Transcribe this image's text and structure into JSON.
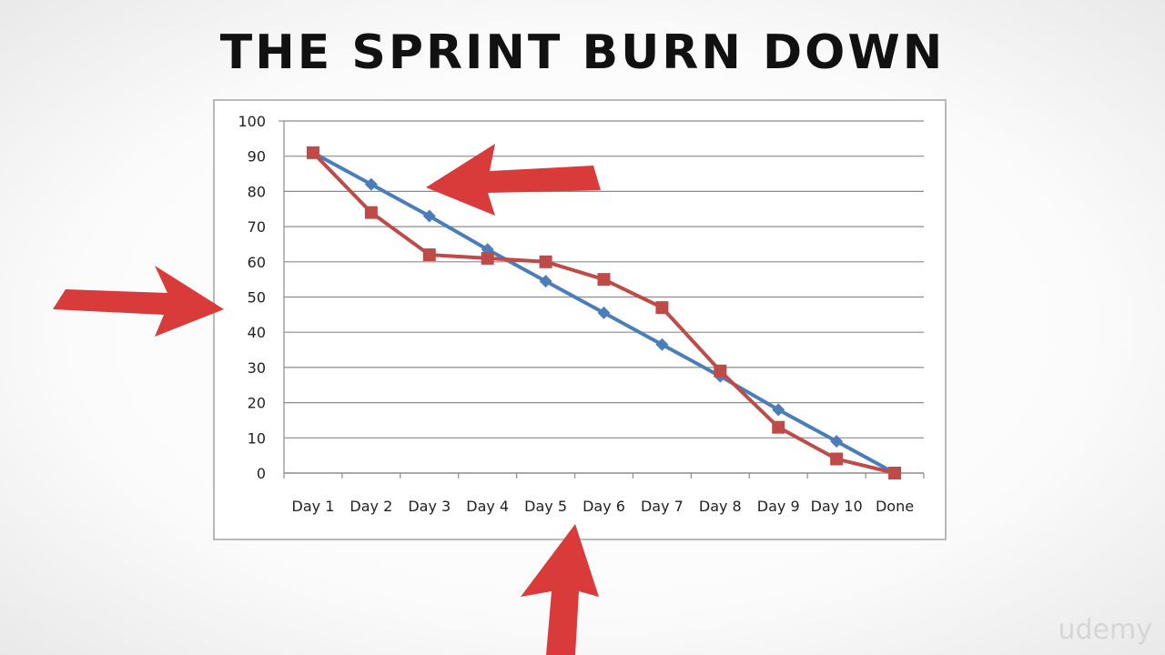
{
  "page": {
    "title": "THE SPRINT BURN DOWN",
    "watermark": "udemy"
  },
  "colors": {
    "ideal": "#4a7ebb",
    "actual": "#be4b48",
    "arrow": "#d93a3a",
    "grid": "#8c8c8c"
  },
  "chart_data": {
    "type": "line",
    "categories": [
      "Day 1",
      "Day 2",
      "Day 3",
      "Day 4",
      "Day 5",
      "Day 6",
      "Day 7",
      "Day 8",
      "Day 9",
      "Day 10",
      "Done"
    ],
    "ylim": [
      0,
      100
    ],
    "yticks": [
      0,
      10,
      20,
      30,
      40,
      50,
      60,
      70,
      80,
      90,
      100
    ],
    "grid": true,
    "legend": "none",
    "series": [
      {
        "key": "ideal",
        "marker": "diamond",
        "values": [
          91,
          82,
          73,
          63.5,
          54.5,
          45.5,
          36.5,
          27.5,
          18,
          9,
          0
        ]
      },
      {
        "key": "actual",
        "marker": "square",
        "values": [
          91,
          74,
          62,
          61,
          60,
          55,
          47,
          29,
          13,
          4,
          0
        ]
      }
    ]
  }
}
